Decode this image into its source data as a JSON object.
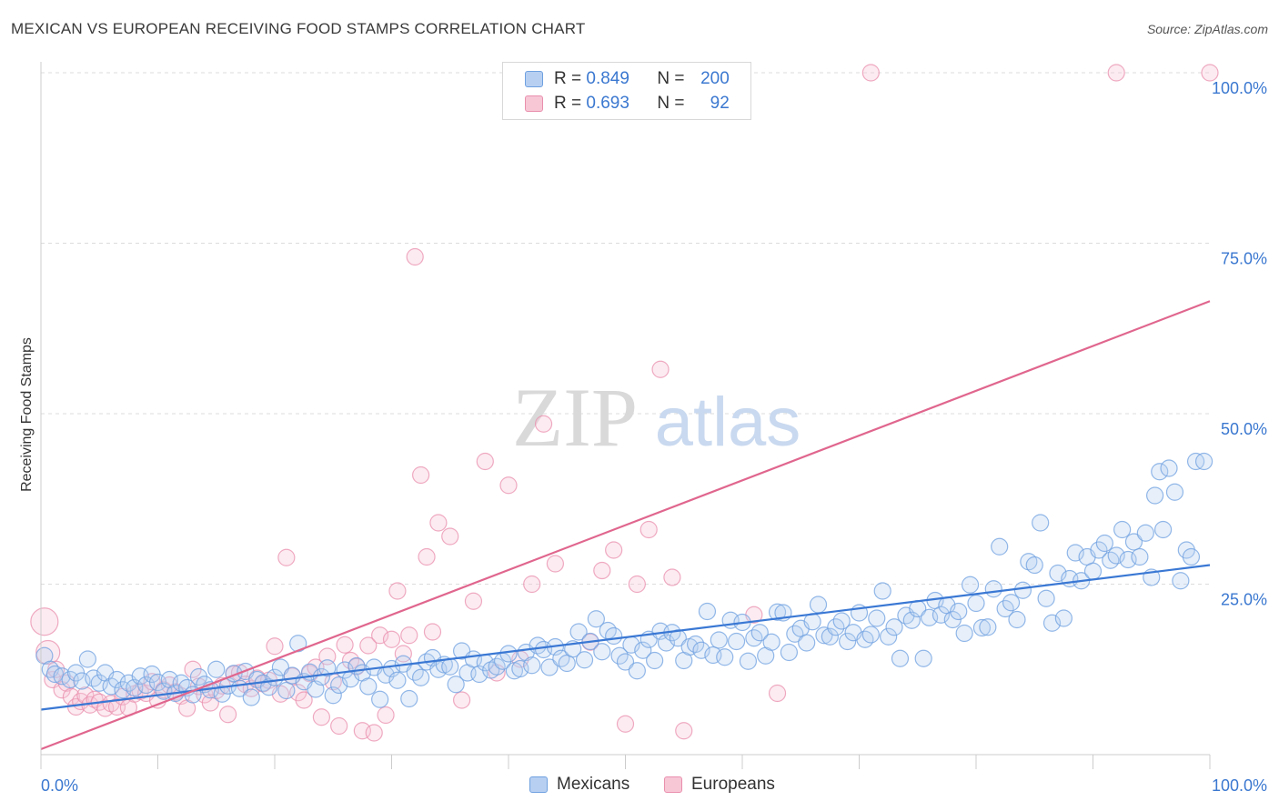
{
  "title": "MEXICAN VS EUROPEAN RECEIVING FOOD STAMPS CORRELATION CHART",
  "source": "Source: ZipAtlas.com",
  "watermark": {
    "zip": "ZIP",
    "atlas": "atlas"
  },
  "stats": [
    {
      "r_label": "R =",
      "r_value": "0.849",
      "n_label": "N =",
      "n_value": "200",
      "color": "#6fa0e0",
      "fill": "#b7d0f2"
    },
    {
      "r_label": "R =",
      "r_value": "0.693",
      "n_label": "N =",
      "n_value": "92",
      "color": "#e98fad",
      "fill": "#f7c7d6"
    }
  ],
  "legend": [
    {
      "name": "Mexicans",
      "color": "#6fa0e0",
      "fill": "#b7d0f2"
    },
    {
      "name": "Europeans",
      "color": "#e98fad",
      "fill": "#f7c7d6"
    }
  ],
  "chart_data": {
    "type": "scatter",
    "title": "MEXICAN VS EUROPEAN RECEIVING FOOD STAMPS CORRELATION CHART",
    "xlabel": "",
    "ylabel": "Receiving Food Stamps",
    "xlim": [
      0,
      100
    ],
    "ylim": [
      0,
      100
    ],
    "x_tick_labels": [
      "0.0%",
      "100.0%"
    ],
    "y_tick_labels": [
      "25.0%",
      "50.0%",
      "75.0%",
      "100.0%"
    ],
    "y_ticks": [
      25,
      50,
      75,
      100
    ],
    "grid": true,
    "series": [
      {
        "name": "Mexicans",
        "color": "#3a78d4",
        "trend": {
          "x": [
            0,
            100
          ],
          "y": [
            6.6,
            27.8
          ]
        },
        "points": [
          [
            0.3,
            14.5
          ],
          [
            0.8,
            12.5
          ],
          [
            1.2,
            11.8
          ],
          [
            1.8,
            11.5
          ],
          [
            2.5,
            11.0
          ],
          [
            3.0,
            12.0
          ],
          [
            3.5,
            10.8
          ],
          [
            4.0,
            14.0
          ],
          [
            4.5,
            11.2
          ],
          [
            5.0,
            10.5
          ],
          [
            5.5,
            12.0
          ],
          [
            6.0,
            10.0
          ],
          [
            6.5,
            11.0
          ],
          [
            7.0,
            9.5
          ],
          [
            7.5,
            10.5
          ],
          [
            8.0,
            9.8
          ],
          [
            8.5,
            11.5
          ],
          [
            9.0,
            10.2
          ],
          [
            9.5,
            11.8
          ],
          [
            10.0,
            10.6
          ],
          [
            10.5,
            9.3
          ],
          [
            11.0,
            11.0
          ],
          [
            11.5,
            9.0
          ],
          [
            12.0,
            10.5
          ],
          [
            12.5,
            9.8
          ],
          [
            13.0,
            8.8
          ],
          [
            13.5,
            11.4
          ],
          [
            14.0,
            10.3
          ],
          [
            14.5,
            9.5
          ],
          [
            15.0,
            12.5
          ],
          [
            15.5,
            8.9
          ],
          [
            16.0,
            10.1
          ],
          [
            16.5,
            11.9
          ],
          [
            17.0,
            9.7
          ],
          [
            17.5,
            12.2
          ],
          [
            18.0,
            8.4
          ],
          [
            18.5,
            11.0
          ],
          [
            19.0,
            10.5
          ],
          [
            19.5,
            9.9
          ],
          [
            20.0,
            11.3
          ],
          [
            20.5,
            12.8
          ],
          [
            21.0,
            9.4
          ],
          [
            21.5,
            11.6
          ],
          [
            22.0,
            16.3
          ],
          [
            22.5,
            10.7
          ],
          [
            23.0,
            12.1
          ],
          [
            23.5,
            9.6
          ],
          [
            24.0,
            11.4
          ],
          [
            24.5,
            12.7
          ],
          [
            25.0,
            8.7
          ],
          [
            25.5,
            10.2
          ],
          [
            26.0,
            12.4
          ],
          [
            26.5,
            11.1
          ],
          [
            27.0,
            13.0
          ],
          [
            27.5,
            12.0
          ],
          [
            28.0,
            10.0
          ],
          [
            28.5,
            12.8
          ],
          [
            29.0,
            8.1
          ],
          [
            29.5,
            11.7
          ],
          [
            30.0,
            12.6
          ],
          [
            30.5,
            10.9
          ],
          [
            31.0,
            13.3
          ],
          [
            31.5,
            8.2
          ],
          [
            32.0,
            12.1
          ],
          [
            32.5,
            11.3
          ],
          [
            33.0,
            13.6
          ],
          [
            33.5,
            14.2
          ],
          [
            34.0,
            12.5
          ],
          [
            34.5,
            13.2
          ],
          [
            35.0,
            12.9
          ],
          [
            35.5,
            10.3
          ],
          [
            36.0,
            15.2
          ],
          [
            36.5,
            12.0
          ],
          [
            37.0,
            14.0
          ],
          [
            37.5,
            11.8
          ],
          [
            38.0,
            13.5
          ],
          [
            38.5,
            12.4
          ],
          [
            39.0,
            12.9
          ],
          [
            39.5,
            13.7
          ],
          [
            40.0,
            14.8
          ],
          [
            40.5,
            12.3
          ],
          [
            41.0,
            12.6
          ],
          [
            41.5,
            15.0
          ],
          [
            42.0,
            13.1
          ],
          [
            42.5,
            16.0
          ],
          [
            43.0,
            15.4
          ],
          [
            43.5,
            12.8
          ],
          [
            44.0,
            15.8
          ],
          [
            44.5,
            14.1
          ],
          [
            45.0,
            13.4
          ],
          [
            45.5,
            15.5
          ],
          [
            46.0,
            18.0
          ],
          [
            46.5,
            13.9
          ],
          [
            47.0,
            16.6
          ],
          [
            47.5,
            19.9
          ],
          [
            48.0,
            15.1
          ],
          [
            48.5,
            18.2
          ],
          [
            49.0,
            17.4
          ],
          [
            49.5,
            14.5
          ],
          [
            50.0,
            13.6
          ],
          [
            50.5,
            16.1
          ],
          [
            51.0,
            12.3
          ],
          [
            51.5,
            15.3
          ],
          [
            52.0,
            16.9
          ],
          [
            52.5,
            13.8
          ],
          [
            53.0,
            18.1
          ],
          [
            53.5,
            16.4
          ],
          [
            54.0,
            17.9
          ],
          [
            54.5,
            17.1
          ],
          [
            55.0,
            13.8
          ],
          [
            55.5,
            15.8
          ],
          [
            56.0,
            16.2
          ],
          [
            56.5,
            15.3
          ],
          [
            57.0,
            21.0
          ],
          [
            57.5,
            14.6
          ],
          [
            58.0,
            16.8
          ],
          [
            58.5,
            14.3
          ],
          [
            59.0,
            19.7
          ],
          [
            59.5,
            16.6
          ],
          [
            60.0,
            19.4
          ],
          [
            60.5,
            13.7
          ],
          [
            61.0,
            17.1
          ],
          [
            61.5,
            17.9
          ],
          [
            62.0,
            14.5
          ],
          [
            62.5,
            16.5
          ],
          [
            63.0,
            20.9
          ],
          [
            63.5,
            20.8
          ],
          [
            64.0,
            15.0
          ],
          [
            64.5,
            17.7
          ],
          [
            65.0,
            18.5
          ],
          [
            65.5,
            16.4
          ],
          [
            66.0,
            19.5
          ],
          [
            66.5,
            22.0
          ],
          [
            67.0,
            17.5
          ],
          [
            67.5,
            17.3
          ],
          [
            68.0,
            18.7
          ],
          [
            68.5,
            19.6
          ],
          [
            69.0,
            16.6
          ],
          [
            69.5,
            17.9
          ],
          [
            70.0,
            20.8
          ],
          [
            70.5,
            16.9
          ],
          [
            71.0,
            17.6
          ],
          [
            71.5,
            20.0
          ],
          [
            72.0,
            24.0
          ],
          [
            72.5,
            17.3
          ],
          [
            73.0,
            18.7
          ],
          [
            73.5,
            14.1
          ],
          [
            74.0,
            20.4
          ],
          [
            74.5,
            19.7
          ],
          [
            75.0,
            21.4
          ],
          [
            75.5,
            14.1
          ],
          [
            76.0,
            20.1
          ],
          [
            76.5,
            22.6
          ],
          [
            77.0,
            20.5
          ],
          [
            77.5,
            21.9
          ],
          [
            78.0,
            19.8
          ],
          [
            78.5,
            21.0
          ],
          [
            79.0,
            17.8
          ],
          [
            79.5,
            24.9
          ],
          [
            80.0,
            22.2
          ],
          [
            80.5,
            18.6
          ],
          [
            81.0,
            18.7
          ],
          [
            81.5,
            24.3
          ],
          [
            82.0,
            30.5
          ],
          [
            82.5,
            21.4
          ],
          [
            83.0,
            22.3
          ],
          [
            83.5,
            19.8
          ],
          [
            84.0,
            24.1
          ],
          [
            84.5,
            28.3
          ],
          [
            85.0,
            27.8
          ],
          [
            85.5,
            34.0
          ],
          [
            86.0,
            22.9
          ],
          [
            86.5,
            19.3
          ],
          [
            87.0,
            26.6
          ],
          [
            87.5,
            20.0
          ],
          [
            88.0,
            25.8
          ],
          [
            88.5,
            29.6
          ],
          [
            89.0,
            25.5
          ],
          [
            89.5,
            29.0
          ],
          [
            90.0,
            26.9
          ],
          [
            90.5,
            30.0
          ],
          [
            91.0,
            31.0
          ],
          [
            91.5,
            28.5
          ],
          [
            92.0,
            29.2
          ],
          [
            92.5,
            33.0
          ],
          [
            93.0,
            28.6
          ],
          [
            93.5,
            31.2
          ],
          [
            94.0,
            29.0
          ],
          [
            94.5,
            32.5
          ],
          [
            95.0,
            26.0
          ],
          [
            95.3,
            38.0
          ],
          [
            95.7,
            41.5
          ],
          [
            96.0,
            33.0
          ],
          [
            96.5,
            42.0
          ],
          [
            97.0,
            38.5
          ],
          [
            97.5,
            25.5
          ],
          [
            98.0,
            30.0
          ],
          [
            98.4,
            29.0
          ],
          [
            98.8,
            43.0
          ],
          [
            99.5,
            43.0
          ]
        ]
      },
      {
        "name": "Europeans",
        "color": "#e0668e",
        "trend": {
          "x": [
            0,
            100
          ],
          "y": [
            0.8,
            66.5
          ]
        },
        "points": [
          [
            0.3,
            19.5
          ],
          [
            0.6,
            15.0
          ],
          [
            1.0,
            11.0
          ],
          [
            1.3,
            12.5
          ],
          [
            1.8,
            9.5
          ],
          [
            2.2,
            10.5
          ],
          [
            2.6,
            8.5
          ],
          [
            3.0,
            7.0
          ],
          [
            3.4,
            7.8
          ],
          [
            3.8,
            8.7
          ],
          [
            4.2,
            7.3
          ],
          [
            4.6,
            8.1
          ],
          [
            5.0,
            7.7
          ],
          [
            5.5,
            6.8
          ],
          [
            6.0,
            7.5
          ],
          [
            6.5,
            7.0
          ],
          [
            7.0,
            8.5
          ],
          [
            7.5,
            6.9
          ],
          [
            8.0,
            8.9
          ],
          [
            8.5,
            9.3
          ],
          [
            9.0,
            9.0
          ],
          [
            9.5,
            10.7
          ],
          [
            10.0,
            8.0
          ],
          [
            10.5,
            9.5
          ],
          [
            11.0,
            10.2
          ],
          [
            11.5,
            9.2
          ],
          [
            12.0,
            8.6
          ],
          [
            12.5,
            6.8
          ],
          [
            13.0,
            12.5
          ],
          [
            13.5,
            10.0
          ],
          [
            14.0,
            8.8
          ],
          [
            14.5,
            7.6
          ],
          [
            15.0,
            9.4
          ],
          [
            15.5,
            10.1
          ],
          [
            16.0,
            5.9
          ],
          [
            16.5,
            11.8
          ],
          [
            17.0,
            12.0
          ],
          [
            17.5,
            10.3
          ],
          [
            18.0,
            9.7
          ],
          [
            18.5,
            11.2
          ],
          [
            19.0,
            10.4
          ],
          [
            19.5,
            10.9
          ],
          [
            20.0,
            15.9
          ],
          [
            20.5,
            8.9
          ],
          [
            21.0,
            28.9
          ],
          [
            21.5,
            11.5
          ],
          [
            22.0,
            9.1
          ],
          [
            22.5,
            8.0
          ],
          [
            23.0,
            11.9
          ],
          [
            23.5,
            12.8
          ],
          [
            24.0,
            5.5
          ],
          [
            24.5,
            14.4
          ],
          [
            25.0,
            10.7
          ],
          [
            25.5,
            4.2
          ],
          [
            26.0,
            16.1
          ],
          [
            26.5,
            13.8
          ],
          [
            27.0,
            12.9
          ],
          [
            27.5,
            3.5
          ],
          [
            28.0,
            16.0
          ],
          [
            28.5,
            3.2
          ],
          [
            29.0,
            17.5
          ],
          [
            29.5,
            5.8
          ],
          [
            30.0,
            16.9
          ],
          [
            30.5,
            24.0
          ],
          [
            31.0,
            14.8
          ],
          [
            31.5,
            17.5
          ],
          [
            32.0,
            73.0
          ],
          [
            32.5,
            41.0
          ],
          [
            33.0,
            29.0
          ],
          [
            33.5,
            18.0
          ],
          [
            34.0,
            34.0
          ],
          [
            35.0,
            32.0
          ],
          [
            36.0,
            8.0
          ],
          [
            37.0,
            22.5
          ],
          [
            38.0,
            43.0
          ],
          [
            39.0,
            12.0
          ],
          [
            40.0,
            39.5
          ],
          [
            41.0,
            14.0
          ],
          [
            42.0,
            25.0
          ],
          [
            43.0,
            48.5
          ],
          [
            44.0,
            28.0
          ],
          [
            47.0,
            16.5
          ],
          [
            48.0,
            27.0
          ],
          [
            49.0,
            30.0
          ],
          [
            50.0,
            4.5
          ],
          [
            51.0,
            25.0
          ],
          [
            52.0,
            33.0
          ],
          [
            53.0,
            56.5
          ],
          [
            54.0,
            26.0
          ],
          [
            55.0,
            3.5
          ],
          [
            61.0,
            20.5
          ],
          [
            63.0,
            9.0
          ]
        ],
        "extra_top_points": [
          [
            71.0,
            100.0
          ],
          [
            92.0,
            100.0
          ],
          [
            100.0,
            100.0
          ]
        ]
      }
    ]
  }
}
